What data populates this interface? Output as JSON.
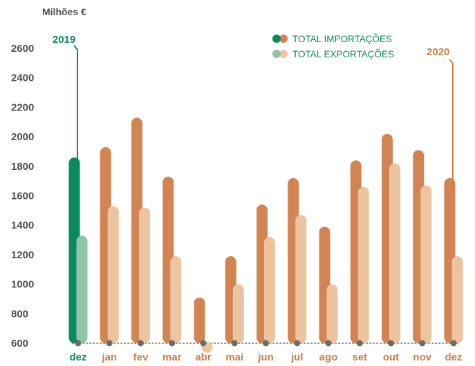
{
  "chart_data": {
    "type": "bar",
    "unit_label": "Milhões €",
    "categories": [
      "dez",
      "jan",
      "fev",
      "mar",
      "abr",
      "mai",
      "jun",
      "jul",
      "ago",
      "set",
      "out",
      "nov",
      "dez"
    ],
    "period_of_category": [
      "2019",
      "2020",
      "2020",
      "2020",
      "2020",
      "2020",
      "2020",
      "2020",
      "2020",
      "2020",
      "2020",
      "2020",
      "2020"
    ],
    "series": [
      {
        "name": "TOTAL IMPORTAÇÕES",
        "values": [
          1860,
          1930,
          2130,
          1730,
          910,
          1190,
          1540,
          1720,
          1390,
          1840,
          2020,
          1910,
          1720
        ]
      },
      {
        "name": "TOTAL EXPORTAÇÕES",
        "values": [
          1330,
          1530,
          1520,
          1190,
          610,
          1000,
          1320,
          1470,
          1000,
          1660,
          1820,
          1670,
          1190
        ]
      }
    ],
    "ylim": [
      600,
      2700
    ],
    "yticks": [
      600,
      800,
      1000,
      1200,
      1400,
      1600,
      1800,
      2000,
      2200,
      2400,
      2600
    ],
    "year_labels": [
      "2019",
      "2020"
    ],
    "grid": false,
    "legend_position": "top-right"
  },
  "colors": {
    "import_2019": "#0a8a5f",
    "export_2019": "#8fc4a8",
    "import_2020": "#d28552",
    "export_2020": "#eec4a0",
    "label_2019": "#0a8a5f",
    "label_2020": "#cd7f47",
    "legend_text": "#0a8a5f",
    "axis_text": "#4d4d4d",
    "baseline_dot": "#6b6b6b"
  }
}
